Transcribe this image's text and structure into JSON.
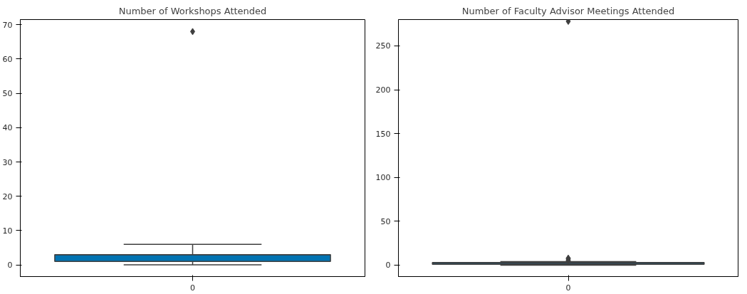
{
  "chart_data": [
    {
      "type": "box",
      "title": "Number of Workshops Attended",
      "categories": [
        "0"
      ],
      "color": "#0173b2",
      "ylim": [
        -3.4,
        71.5
      ],
      "yticks": [
        0,
        10,
        20,
        30,
        40,
        50,
        60,
        70
      ],
      "marker": "diamond",
      "boxes": [
        {
          "low": 0,
          "q1": 1,
          "median": 3,
          "q3": 3,
          "high": 6,
          "outliers": [
            68
          ]
        }
      ]
    },
    {
      "type": "box",
      "title": "Number of Faculty Advisor Meetings Attended",
      "categories": [
        "0"
      ],
      "color": "#0173b2",
      "ylim": [
        -13,
        280
      ],
      "yticks": [
        0,
        50,
        100,
        150,
        200,
        250
      ],
      "marker": "diamond",
      "boxes": [
        {
          "low": 0,
          "q1": 1,
          "median": 2,
          "q3": 3,
          "high": 4,
          "outliers": [
            5,
            6,
            7,
            8,
            278
          ]
        }
      ]
    }
  ]
}
